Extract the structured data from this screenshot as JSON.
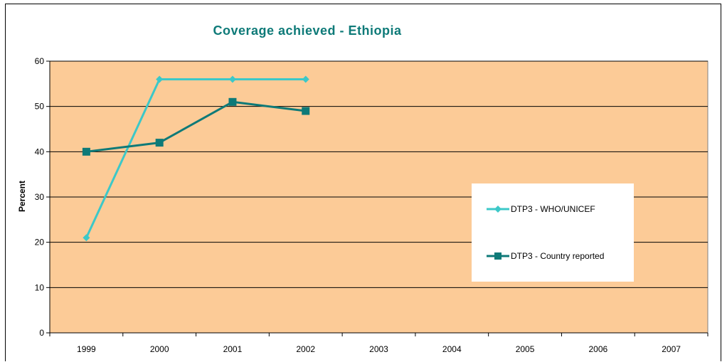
{
  "chart_data": {
    "type": "line",
    "title": "Coverage achieved - Ethiopia",
    "xlabel": "",
    "ylabel": "Percent",
    "categories": [
      "1999",
      "2000",
      "2001",
      "2002",
      "2003",
      "2004",
      "2005",
      "2006",
      "2007"
    ],
    "ylim": [
      0,
      60
    ],
    "yticks": [
      0,
      10,
      20,
      30,
      40,
      50,
      60
    ],
    "grid": true,
    "legend_position": "right",
    "series": [
      {
        "name": "DTP3 - WHO/UNICEF",
        "marker": "diamond",
        "color": "#3cc8c8",
        "values": [
          21,
          56,
          56,
          56,
          null,
          null,
          null,
          null,
          null
        ]
      },
      {
        "name": "DTP3 - Country reported",
        "marker": "square",
        "color": "#0e7a78",
        "values": [
          40,
          42,
          51,
          49,
          null,
          null,
          null,
          null,
          null
        ]
      }
    ]
  },
  "colors": {
    "plot_background": "#fccb97",
    "title": "#0e7a78",
    "gridline": "#000000"
  }
}
